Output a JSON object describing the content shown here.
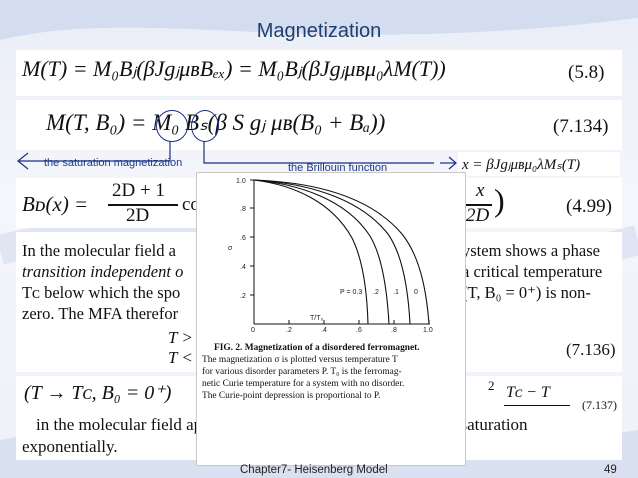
{
  "slide": {
    "title": "Magnetization",
    "footer_text": "Chapter7- Heisenberg Model",
    "page_number": "49"
  },
  "equations": {
    "eq_5_8": "M(T) = M₀Bⱼ(βJgⱼμʙBₑₓ) = M₀Bⱼ(βJgⱼμʙμ₀λM(T))",
    "eq_5_8_num": "(5.8)",
    "eq_7_134": "M(T, B₀) = M₀ Bₛ(β S gⱼ μʙ(B₀ + Bₐ))",
    "eq_7_134_num": "(7.134)",
    "eq_x": "x = βJgⱼμʙμ₀λMₛ(T)",
    "eq_4_99_left": "Bᴅ(x) =",
    "eq_4_99_frac_num": "2D + 1",
    "eq_4_99_frac_den": "2D",
    "eq_4_99_tail": "co",
    "eq_4_99_right_num": "x",
    "eq_4_99_right_den": "2D",
    "eq_4_99_num": "(4.99)",
    "eq_7_136_a": "T >",
    "eq_7_136_b": "T <",
    "eq_7_136_num": "(7.136)",
    "eq_7_137_left": "(T → Tᴄ, B₀ = 0⁺)",
    "eq_7_137_exp": "2",
    "eq_7_137_frac": "Tᴄ − T",
    "eq_7_137_num": "(7.137)"
  },
  "annotations": {
    "saturation_label": "the saturation magnetization",
    "brillouin_label": "the Brillouin function"
  },
  "paragraph": {
    "line1_left": "In the molecular field a",
    "line1_right": "ystem shows a phase",
    "line2_left": "transition independent o",
    "line2_right": "a critical temperature",
    "line3_left": "Tᴄ below which the spo",
    "line3_right": "(T, B₀ = 0⁺) is non-",
    "line4_left": "zero. The MFA therefor",
    "closing_line1": "in the molecular field approximation, Mₛ, as T → 0, goes into saturation",
    "closing_line2": "exponentially."
  },
  "figure": {
    "caption_line1": "FIG. 2.  Magnetization of a disordered ferromagnet.",
    "caption_line2": "The magnetization σ is plotted versus temperature T",
    "caption_line3": "for various disorder parameters P.  T₀ is the ferromag-",
    "caption_line4": "netic Curie temperature for a system with no disorder.",
    "caption_line5": "The Curie-point depression is proportional to P.",
    "y_axis_label": "σ",
    "x_axis_label": "T/T₀",
    "curve_labels": [
      "P = 0.3",
      ".2",
      ".1",
      "0"
    ],
    "y_ticks": [
      "1.0",
      ".8",
      ".6",
      ".4",
      ".2"
    ],
    "x_ticks": [
      "0",
      ".2",
      ".4",
      ".6",
      ".8",
      "1.0"
    ]
  },
  "colors": {
    "title": "#1f3f6e",
    "annotation": "#1c3a86",
    "circle": "#1a2f8a"
  }
}
